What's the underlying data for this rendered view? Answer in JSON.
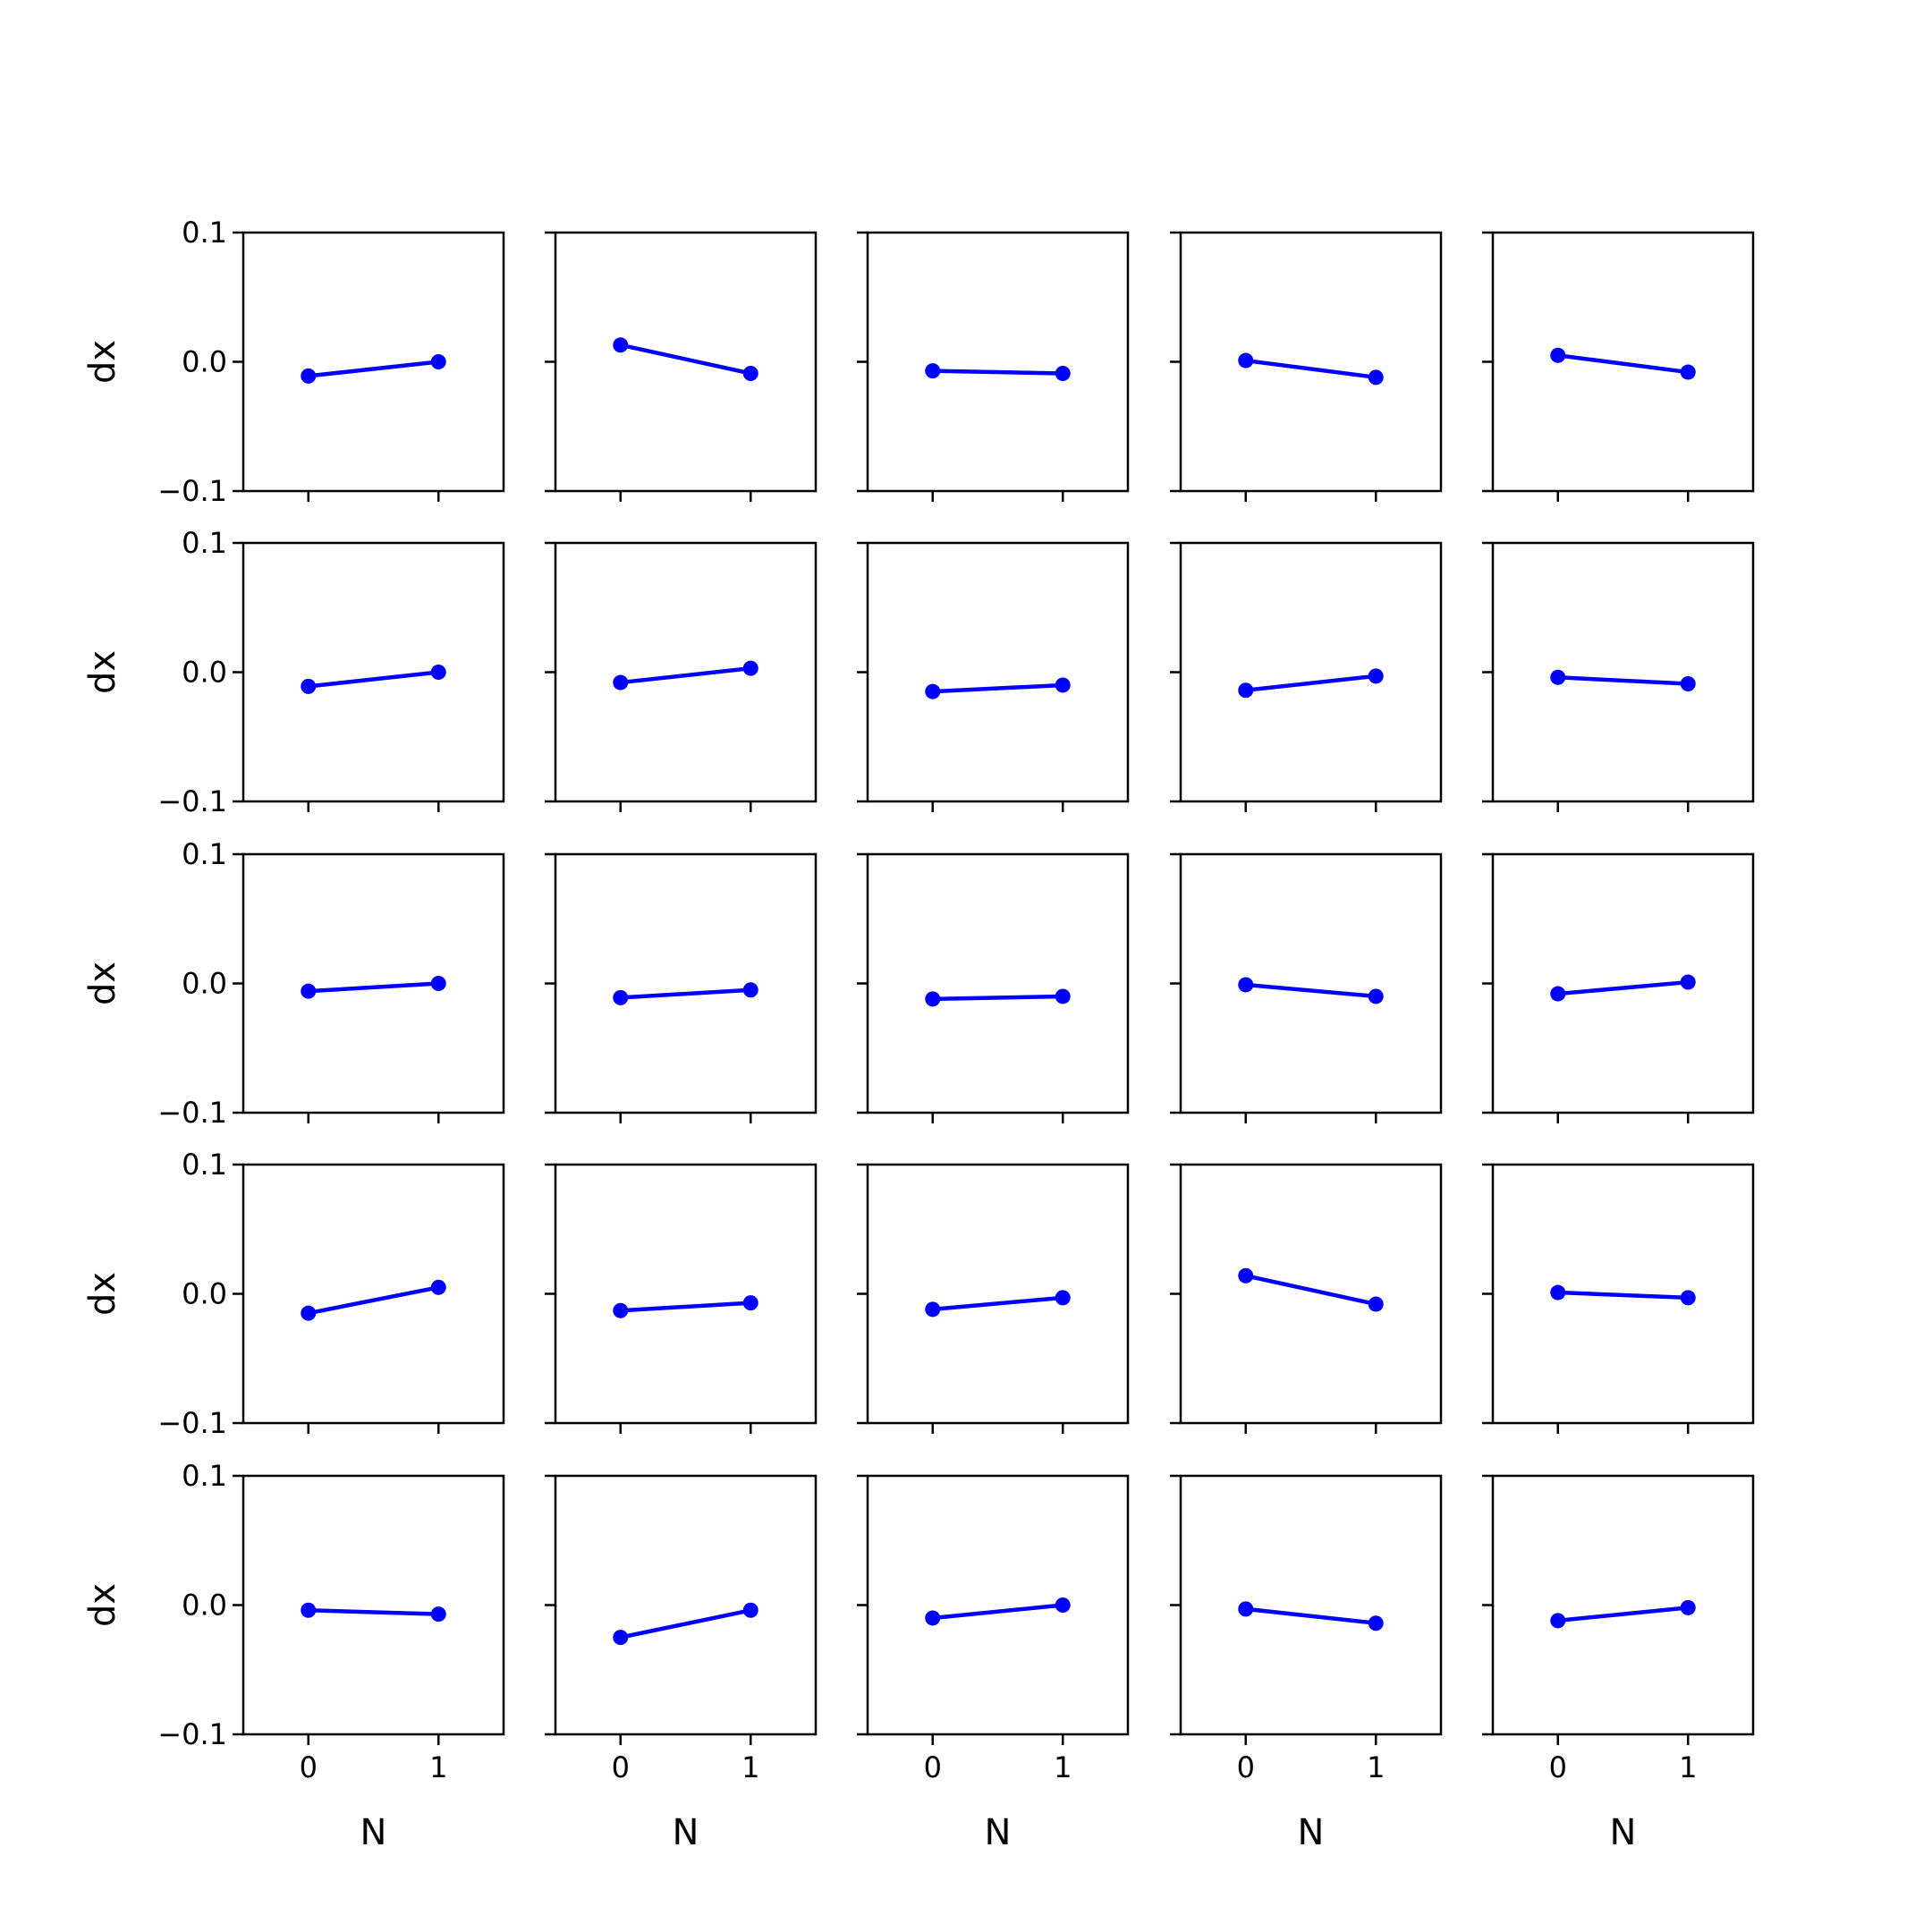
{
  "colors": {
    "line": "#0000ff",
    "marker": "#0000ff",
    "frame": "#000000",
    "background": "#ffffff"
  },
  "layout": {
    "rows": 5,
    "cols": 5,
    "sharex": true,
    "sharey": true
  },
  "chart_data": [
    {
      "type": "line",
      "x": [
        0,
        1
      ],
      "y": [
        -0.011,
        0.0
      ],
      "xlabel": "",
      "ylabel": "dx",
      "ylim": [
        -0.1,
        0.1
      ],
      "yticks": [
        "0.1",
        "0.0",
        "−0.1"
      ],
      "xticks": [],
      "grid": false
    },
    {
      "type": "line",
      "x": [
        0,
        1
      ],
      "y": [
        0.013,
        -0.009
      ],
      "xlabel": "",
      "ylabel": "",
      "ylim": [
        -0.1,
        0.1
      ],
      "yticks": [],
      "xticks": [],
      "grid": false
    },
    {
      "type": "line",
      "x": [
        0,
        1
      ],
      "y": [
        -0.007,
        -0.009
      ],
      "xlabel": "",
      "ylabel": "",
      "ylim": [
        -0.1,
        0.1
      ],
      "yticks": [],
      "xticks": [],
      "grid": false
    },
    {
      "type": "line",
      "x": [
        0,
        1
      ],
      "y": [
        0.001,
        -0.012
      ],
      "xlabel": "",
      "ylabel": "",
      "ylim": [
        -0.1,
        0.1
      ],
      "yticks": [],
      "xticks": [],
      "grid": false
    },
    {
      "type": "line",
      "x": [
        0,
        1
      ],
      "y": [
        0.005,
        -0.008
      ],
      "xlabel": "",
      "ylabel": "",
      "ylim": [
        -0.1,
        0.1
      ],
      "yticks": [],
      "xticks": [],
      "grid": false
    },
    {
      "type": "line",
      "x": [
        0,
        1
      ],
      "y": [
        -0.011,
        0.0
      ],
      "xlabel": "",
      "ylabel": "dx",
      "ylim": [
        -0.1,
        0.1
      ],
      "yticks": [
        "0.1",
        "0.0",
        "−0.1"
      ],
      "xticks": [],
      "grid": false
    },
    {
      "type": "line",
      "x": [
        0,
        1
      ],
      "y": [
        -0.008,
        0.003
      ],
      "xlabel": "",
      "ylabel": "",
      "ylim": [
        -0.1,
        0.1
      ],
      "yticks": [],
      "xticks": [],
      "grid": false
    },
    {
      "type": "line",
      "x": [
        0,
        1
      ],
      "y": [
        -0.015,
        -0.01
      ],
      "xlabel": "",
      "ylabel": "",
      "ylim": [
        -0.1,
        0.1
      ],
      "yticks": [],
      "xticks": [],
      "grid": false
    },
    {
      "type": "line",
      "x": [
        0,
        1
      ],
      "y": [
        -0.014,
        -0.003
      ],
      "xlabel": "",
      "ylabel": "",
      "ylim": [
        -0.1,
        0.1
      ],
      "yticks": [],
      "xticks": [],
      "grid": false
    },
    {
      "type": "line",
      "x": [
        0,
        1
      ],
      "y": [
        -0.004,
        -0.009
      ],
      "xlabel": "",
      "ylabel": "",
      "ylim": [
        -0.1,
        0.1
      ],
      "yticks": [],
      "xticks": [],
      "grid": false
    },
    {
      "type": "line",
      "x": [
        0,
        1
      ],
      "y": [
        -0.006,
        0.0
      ],
      "xlabel": "",
      "ylabel": "dx",
      "ylim": [
        -0.1,
        0.1
      ],
      "yticks": [
        "0.1",
        "0.0",
        "−0.1"
      ],
      "xticks": [],
      "grid": false
    },
    {
      "type": "line",
      "x": [
        0,
        1
      ],
      "y": [
        -0.011,
        -0.005
      ],
      "xlabel": "",
      "ylabel": "",
      "ylim": [
        -0.1,
        0.1
      ],
      "yticks": [],
      "xticks": [],
      "grid": false
    },
    {
      "type": "line",
      "x": [
        0,
        1
      ],
      "y": [
        -0.012,
        -0.01
      ],
      "xlabel": "",
      "ylabel": "",
      "ylim": [
        -0.1,
        0.1
      ],
      "yticks": [],
      "xticks": [],
      "grid": false
    },
    {
      "type": "line",
      "x": [
        0,
        1
      ],
      "y": [
        -0.001,
        -0.01
      ],
      "xlabel": "",
      "ylabel": "",
      "ylim": [
        -0.1,
        0.1
      ],
      "yticks": [],
      "xticks": [],
      "grid": false
    },
    {
      "type": "line",
      "x": [
        0,
        1
      ],
      "y": [
        -0.008,
        0.001
      ],
      "xlabel": "",
      "ylabel": "",
      "ylim": [
        -0.1,
        0.1
      ],
      "yticks": [],
      "xticks": [],
      "grid": false
    },
    {
      "type": "line",
      "x": [
        0,
        1
      ],
      "y": [
        -0.015,
        0.005
      ],
      "xlabel": "",
      "ylabel": "dx",
      "ylim": [
        -0.1,
        0.1
      ],
      "yticks": [
        "0.1",
        "0.0",
        "−0.1"
      ],
      "xticks": [],
      "grid": false
    },
    {
      "type": "line",
      "x": [
        0,
        1
      ],
      "y": [
        -0.013,
        -0.007
      ],
      "xlabel": "",
      "ylabel": "",
      "ylim": [
        -0.1,
        0.1
      ],
      "yticks": [],
      "xticks": [],
      "grid": false
    },
    {
      "type": "line",
      "x": [
        0,
        1
      ],
      "y": [
        -0.012,
        -0.003
      ],
      "xlabel": "",
      "ylabel": "",
      "ylim": [
        -0.1,
        0.1
      ],
      "yticks": [],
      "xticks": [],
      "grid": false
    },
    {
      "type": "line",
      "x": [
        0,
        1
      ],
      "y": [
        0.014,
        -0.008
      ],
      "xlabel": "",
      "ylabel": "",
      "ylim": [
        -0.1,
        0.1
      ],
      "yticks": [],
      "xticks": [],
      "grid": false
    },
    {
      "type": "line",
      "x": [
        0,
        1
      ],
      "y": [
        0.001,
        -0.003
      ],
      "xlabel": "",
      "ylabel": "",
      "ylim": [
        -0.1,
        0.1
      ],
      "yticks": [],
      "xticks": [],
      "grid": false
    },
    {
      "type": "line",
      "x": [
        0,
        1
      ],
      "y": [
        -0.004,
        -0.007
      ],
      "xlabel": "N",
      "ylabel": "dx",
      "ylim": [
        -0.1,
        0.1
      ],
      "yticks": [
        "0.1",
        "0.0",
        "−0.1"
      ],
      "xticks": [
        "0",
        "1"
      ],
      "grid": false
    },
    {
      "type": "line",
      "x": [
        0,
        1
      ],
      "y": [
        -0.025,
        -0.004
      ],
      "xlabel": "N",
      "ylabel": "",
      "ylim": [
        -0.1,
        0.1
      ],
      "yticks": [],
      "xticks": [
        "0",
        "1"
      ],
      "grid": false
    },
    {
      "type": "line",
      "x": [
        0,
        1
      ],
      "y": [
        -0.01,
        0.0
      ],
      "xlabel": "N",
      "ylabel": "",
      "ylim": [
        -0.1,
        0.1
      ],
      "yticks": [],
      "xticks": [
        "0",
        "1"
      ],
      "grid": false
    },
    {
      "type": "line",
      "x": [
        0,
        1
      ],
      "y": [
        -0.003,
        -0.014
      ],
      "xlabel": "N",
      "ylabel": "",
      "ylim": [
        -0.1,
        0.1
      ],
      "yticks": [],
      "xticks": [
        "0",
        "1"
      ],
      "grid": false
    },
    {
      "type": "line",
      "x": [
        0,
        1
      ],
      "y": [
        -0.012,
        -0.002
      ],
      "xlabel": "N",
      "ylabel": "",
      "ylim": [
        -0.1,
        0.1
      ],
      "yticks": [],
      "xticks": [
        "0",
        "1"
      ],
      "grid": false
    }
  ]
}
